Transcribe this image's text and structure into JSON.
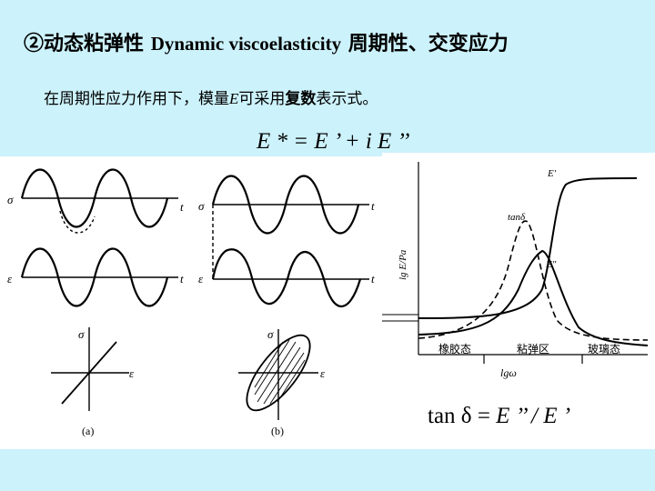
{
  "slide": {
    "title_num": "②",
    "title_cn_1": "动态粘弹性",
    "title_en": "Dynamic viscoelasticity",
    "title_cn_2": "周期性、交变应力"
  },
  "description": {
    "part1": "在周期性应力作用下，模量",
    "symbol": "E",
    "part2": "可采用",
    "bold": "复数",
    "part3": "表示式。"
  },
  "equations": {
    "complex_modulus": "E * = E ’ + i E ’’",
    "tan_prefix": "tan δ = ",
    "tan_ratio": "E ’’ / E ’"
  },
  "left_figure": {
    "stress_symbol": "σ",
    "strain_symbol": "ε",
    "time_symbol": "t",
    "case_a": "(a)",
    "case_b": "(b)"
  },
  "right_figure": {
    "ylabel": "lg E/Pa",
    "xlabel": "lgω",
    "curve_storage": "E′",
    "curve_tan": "tanδ",
    "curve_loss": "E″",
    "region_rubbery": "橡胶态",
    "region_transition": "粘弹区",
    "region_glassy": "玻璃态"
  },
  "colors": {
    "background": "#ccf2fb",
    "panel": "#ffffff",
    "ink": "#000000"
  }
}
